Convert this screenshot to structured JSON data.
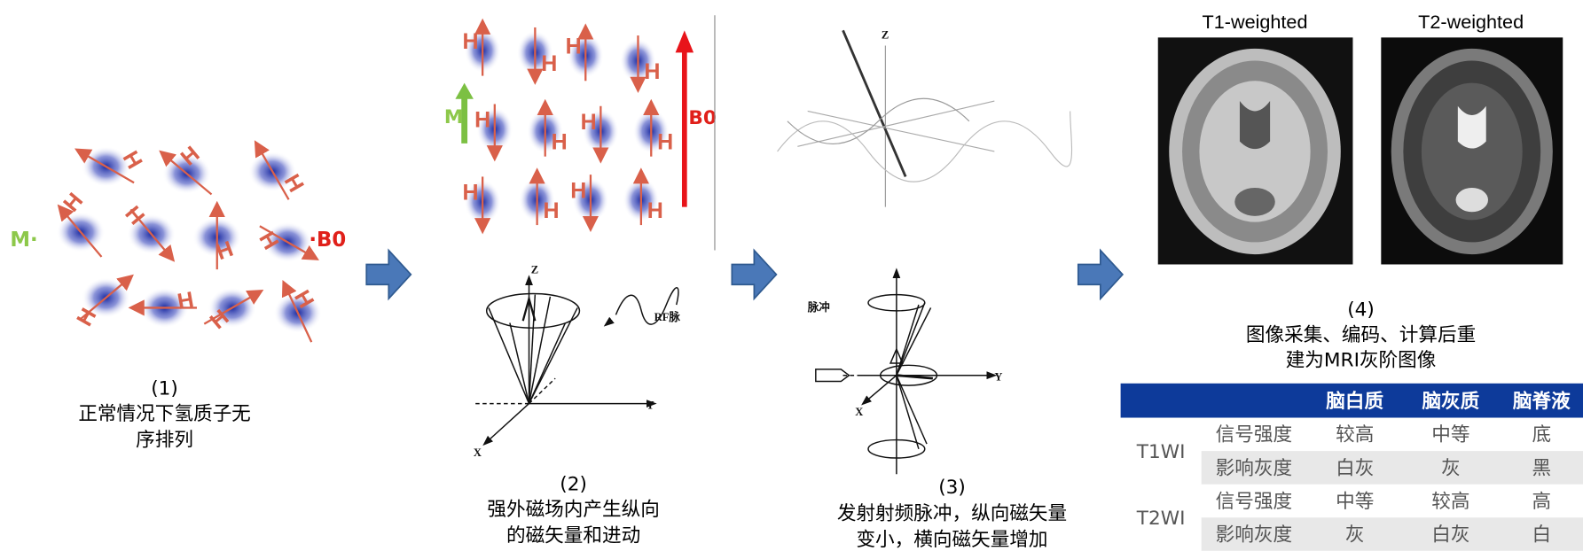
{
  "panels": [
    {
      "number": "(1)",
      "caption": [
        "正常情况下氢质子无",
        "序排列"
      ],
      "m_label": "M·",
      "b0_label": "·B0"
    },
    {
      "number": "(2)",
      "caption": [
        "强外磁场内产生纵向",
        "的磁矢量和进动"
      ],
      "m_label": "M",
      "b0_label": "B0",
      "axes": [
        "Z",
        "Y",
        "X"
      ],
      "rf_label": "RF脉"
    },
    {
      "number": "(3)",
      "caption": [
        "发射射频脉冲，纵向磁矢量",
        "变小，横向磁矢量增加"
      ],
      "axes": [
        "Z",
        "Y",
        "X"
      ],
      "pulse_label": "脉冲"
    },
    {
      "number": "(4)",
      "caption": [
        "图像采集、编码、计算后重",
        "建为MRI灰阶图像"
      ],
      "images": [
        "T1-weighted",
        "T2-weighted"
      ]
    }
  ],
  "proton_label": "H",
  "table": {
    "columns": [
      "脑白质",
      "脑灰质",
      "脑脊液"
    ],
    "groups": [
      {
        "name": "T1WI",
        "rows": [
          [
            "信号强度",
            "较高",
            "中等",
            "底"
          ],
          [
            "影响灰度",
            "白灰",
            "灰",
            "黑"
          ]
        ]
      },
      {
        "name": "T2WI",
        "rows": [
          [
            "信号强度",
            "中等",
            "较高",
            "高"
          ],
          [
            "影响灰度",
            "灰",
            "白灰",
            "白"
          ]
        ]
      }
    ]
  }
}
